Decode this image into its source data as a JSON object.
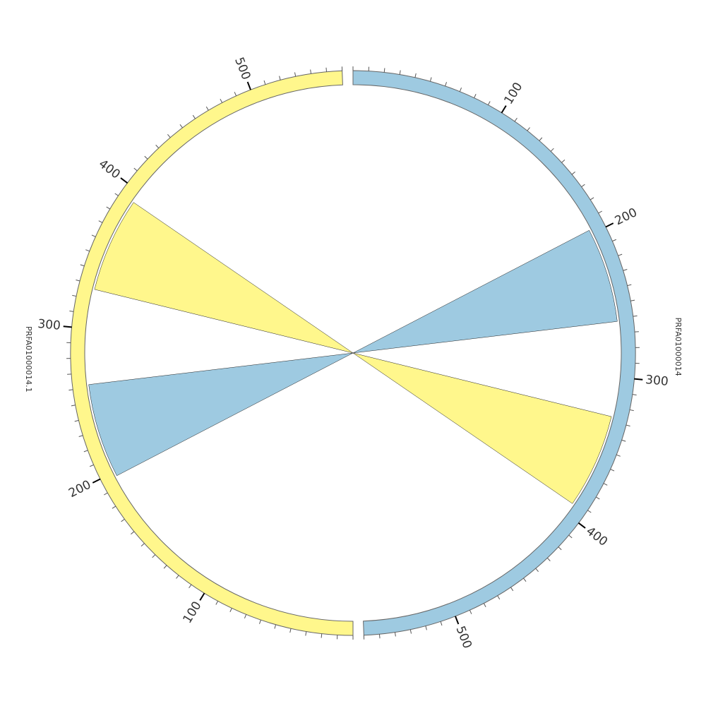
{
  "segments": [
    {
      "name": "PRFA01000014",
      "color": "#9ecae1",
      "length": 560,
      "ticks": [
        100,
        200,
        300,
        400,
        500
      ]
    },
    {
      "name": "PRFA01000014.1",
      "color": "#fff78c",
      "length": 560,
      "ticks": [
        100,
        200,
        300,
        400,
        500
      ]
    }
  ],
  "minor_tick_step": 10,
  "links": [
    {
      "source": {
        "segment": 0,
        "start": 197,
        "end": 262
      },
      "target": {
        "segment": 1,
        "start": 197,
        "end": 262
      },
      "color": "#9ecae1"
    },
    {
      "source": {
        "segment": 1,
        "start": 327,
        "end": 392
      },
      "target": {
        "segment": 0,
        "start": 327,
        "end": 392
      },
      "color": "#fff78c"
    }
  ]
}
